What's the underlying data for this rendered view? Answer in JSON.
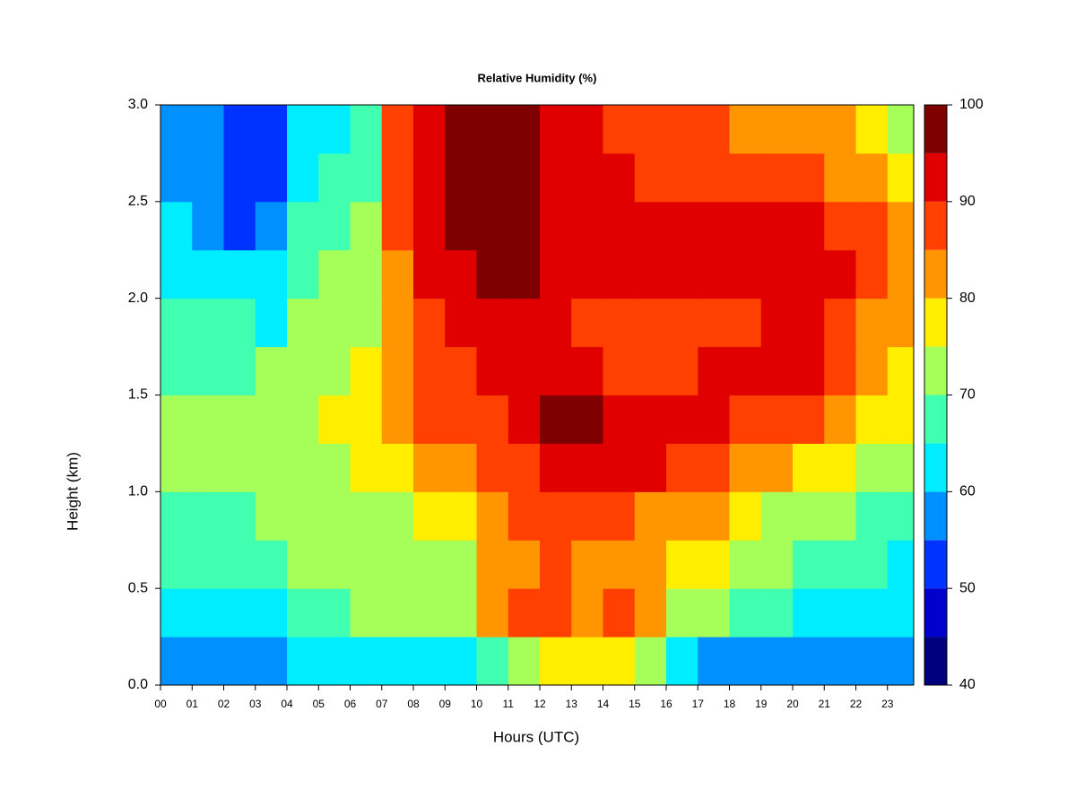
{
  "chart_data": {
    "type": "heatmap",
    "title": "Relative Humidity (%)",
    "xlabel": "Hours (UTC)",
    "ylabel": "Height (km)",
    "x": [
      0.5,
      1.5,
      2.5,
      3.5,
      4.5,
      5.5,
      6.5,
      7.5,
      8.5,
      9.5,
      10.5,
      11.5,
      12.5,
      13.5,
      14.5,
      15.5,
      16.5,
      17.5,
      18.5,
      19.5,
      20.5,
      21.5,
      22.5,
      23.5
    ],
    "y": [
      0.125,
      0.375,
      0.625,
      0.875,
      1.125,
      1.375,
      1.625,
      1.875,
      2.125,
      2.375,
      2.625,
      2.875
    ],
    "values": [
      [
        55,
        62,
        65,
        68,
        70,
        70,
        68,
        66,
        63,
        60,
        58,
        58
      ],
      [
        55,
        63,
        66,
        68,
        70,
        70,
        68,
        65,
        62,
        58,
        56,
        55
      ],
      [
        55,
        63,
        66,
        68,
        70,
        70,
        68,
        65,
        60,
        53,
        50,
        50
      ],
      [
        57,
        64,
        67,
        70,
        72,
        72,
        70,
        64,
        60,
        55,
        52,
        52
      ],
      [
        60,
        67,
        70,
        72,
        74,
        74,
        73,
        72,
        68,
        65,
        63,
        62
      ],
      [
        60,
        68,
        70,
        72,
        74,
        75,
        74,
        73,
        70,
        67,
        65,
        64
      ],
      [
        62,
        72,
        72,
        74,
        76,
        77,
        76,
        74,
        72,
        70,
        68,
        66
      ],
      [
        63,
        70,
        72,
        74,
        78,
        80,
        80,
        80,
        82,
        85,
        87,
        88
      ],
      [
        63,
        70,
        73,
        75,
        80,
        85,
        86,
        87,
        90,
        92,
        94,
        94
      ],
      [
        64,
        70,
        73,
        76,
        80,
        86,
        88,
        90,
        93,
        95,
        97,
        97
      ],
      [
        68,
        80,
        80,
        82,
        86,
        88,
        90,
        93,
        96,
        97,
        98,
        98
      ],
      [
        72,
        85,
        84,
        85,
        88,
        90,
        90,
        92,
        95,
        96,
        96,
        95
      ],
      [
        75,
        86,
        85,
        88,
        93,
        95,
        90,
        90,
        92,
        93,
        93,
        92
      ],
      [
        76,
        84,
        84,
        88,
        94,
        95,
        90,
        88,
        92,
        93,
        92,
        90
      ],
      [
        75,
        85,
        83,
        86,
        90,
        93,
        88,
        87,
        90,
        91,
        90,
        88
      ],
      [
        72,
        80,
        80,
        84,
        90,
        92,
        88,
        87,
        90,
        91,
        89,
        87
      ],
      [
        62,
        72,
        75,
        80,
        88,
        90,
        88,
        87,
        90,
        90,
        88,
        86
      ],
      [
        58,
        70,
        75,
        80,
        86,
        90,
        90,
        88,
        91,
        90,
        87,
        85
      ],
      [
        55,
        68,
        72,
        76,
        82,
        88,
        90,
        88,
        91,
        90,
        86,
        84
      ],
      [
        55,
        66,
        70,
        74,
        80,
        88,
        90,
        90,
        92,
        90,
        86,
        84
      ],
      [
        55,
        64,
        68,
        72,
        78,
        86,
        90,
        92,
        94,
        92,
        86,
        82
      ],
      [
        56,
        63,
        66,
        70,
        75,
        82,
        86,
        88,
        90,
        88,
        83,
        80
      ],
      [
        57,
        62,
        65,
        68,
        72,
        78,
        82,
        84,
        86,
        85,
        80,
        77
      ],
      [
        58,
        62,
        64,
        66,
        70,
        75,
        78,
        80,
        82,
        80,
        76,
        74
      ]
    ],
    "xlim": [
      0,
      23.83
    ],
    "ylim": [
      0,
      3
    ],
    "xticks": [
      {
        "value": 0,
        "label": "00"
      },
      {
        "value": 1,
        "label": "01"
      },
      {
        "value": 2,
        "label": "02"
      },
      {
        "value": 3,
        "label": "03"
      },
      {
        "value": 4,
        "label": "04"
      },
      {
        "value": 5,
        "label": "05"
      },
      {
        "value": 6,
        "label": "06"
      },
      {
        "value": 7,
        "label": "07"
      },
      {
        "value": 8,
        "label": "08"
      },
      {
        "value": 9,
        "label": "09"
      },
      10,
      11,
      12,
      13,
      14,
      15,
      16,
      17,
      18,
      19,
      20,
      21,
      22,
      23
    ],
    "yticks": [
      {
        "value": 0,
        "label": "0.0"
      },
      0.5,
      {
        "value": 1,
        "label": "1.0"
      },
      1.5,
      {
        "value": 2,
        "label": "2.0"
      },
      2.5,
      {
        "value": 3,
        "label": "3.0"
      }
    ],
    "colorbar": {
      "levels": [
        40,
        45,
        50,
        55,
        60,
        65,
        70,
        75,
        80,
        85,
        90,
        95,
        100
      ],
      "colors": [
        "#00007f",
        "#0000cc",
        "#0033ff",
        "#0091ff",
        "#00ecff",
        "#40ffb0",
        "#a6ff58",
        "#ffee00",
        "#ff9500",
        "#ff4000",
        "#e00000",
        "#7f0000"
      ],
      "ticks": [
        40,
        50,
        60,
        70,
        80,
        90,
        100
      ]
    }
  }
}
